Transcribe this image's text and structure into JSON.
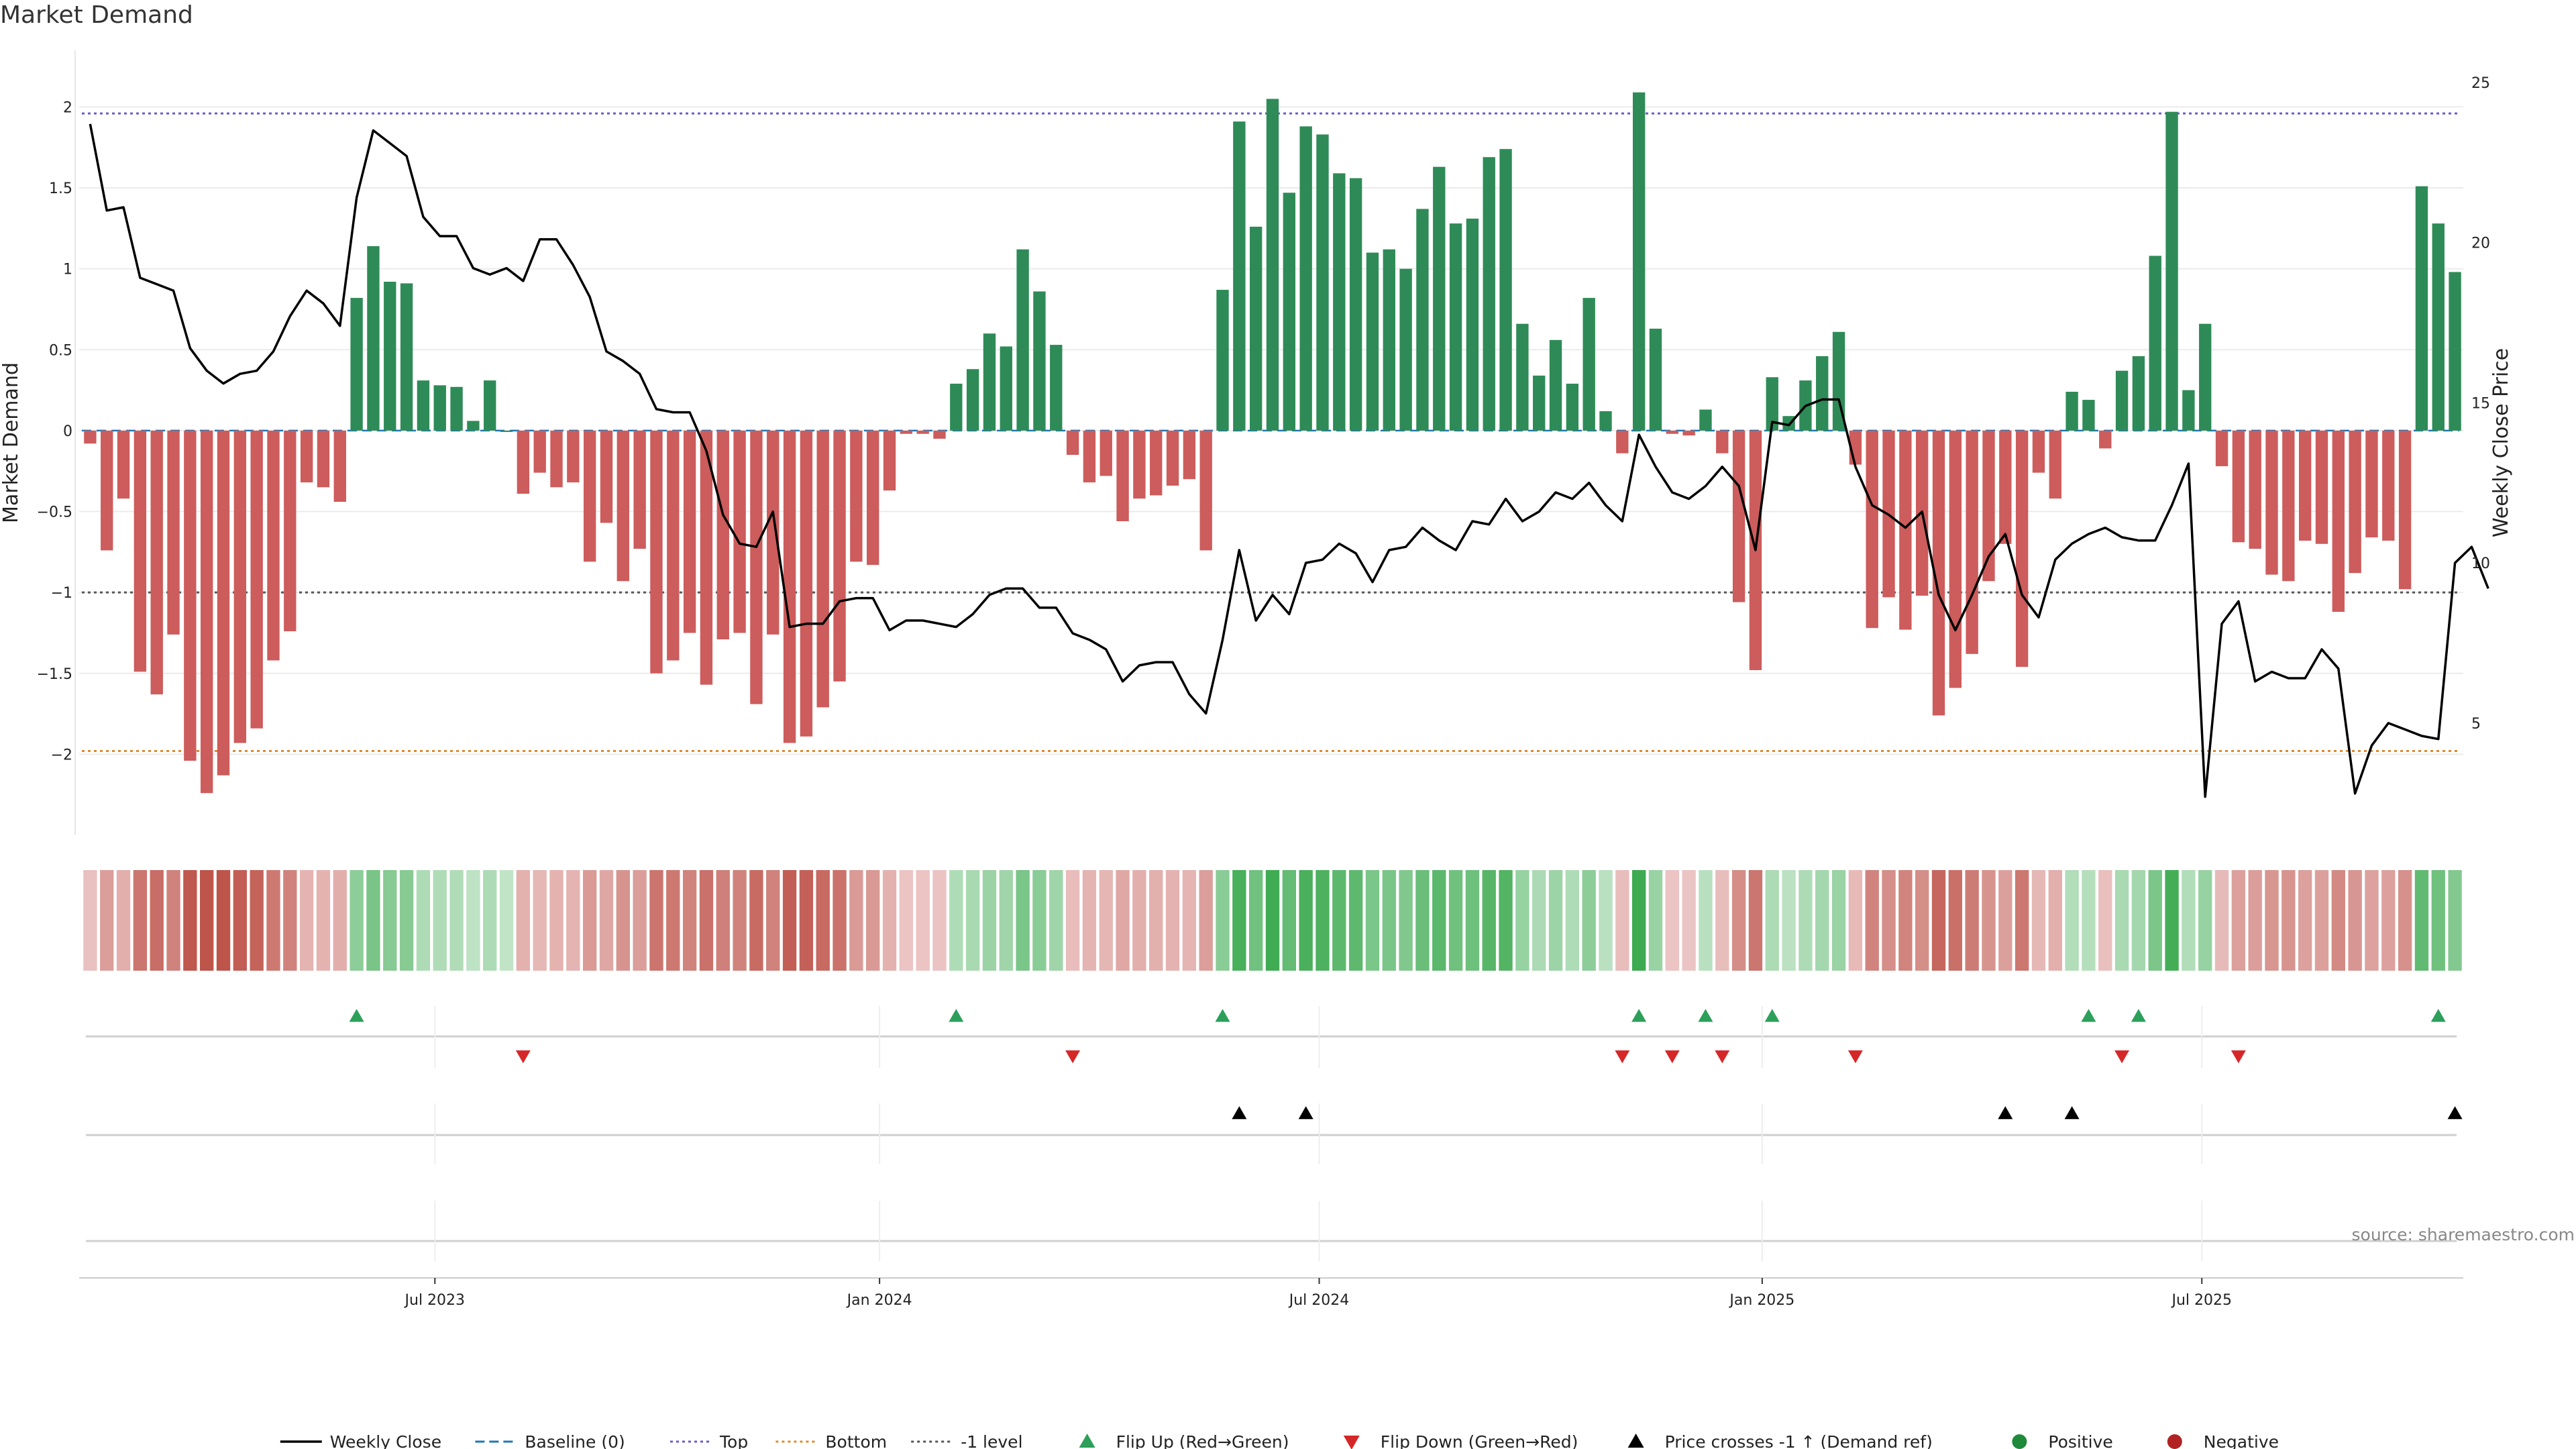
{
  "chart_data": {
    "type": "bar",
    "title": "Market Demand",
    "ylabel": "Market Demand",
    "y2label": "Weekly Close Price",
    "ylim": [
      -2.5,
      2.35
    ],
    "y2lim": [
      1.5,
      26
    ],
    "yticks": [
      "2",
      "1.5",
      "1",
      "0.5",
      "0",
      "−0.5",
      "−1",
      "−1.5",
      "−2"
    ],
    "ytick_values": [
      2,
      1.5,
      1,
      0.5,
      0,
      -0.5,
      -1,
      -1.5,
      -2
    ],
    "y2ticks": [
      "25",
      "20",
      "15",
      "10",
      "5"
    ],
    "y2tick_values": [
      25,
      20,
      15,
      10,
      5
    ],
    "xticks": [
      "Jul 2023",
      "Jan 2024",
      "Jul 2024",
      "Jan 2025",
      "Jul 2025"
    ],
    "xtick_positions": [
      20.7,
      47.4,
      73.8,
      100.4,
      126.8
    ],
    "reference_levels": {
      "top": 1.96,
      "bottom": -1.98,
      "minus_one": -1.0
    },
    "demand": [
      -0.08,
      -0.74,
      -0.42,
      -1.49,
      -1.63,
      -1.26,
      -2.04,
      -2.24,
      -2.13,
      -1.93,
      -1.84,
      -1.42,
      -1.24,
      -0.32,
      -0.35,
      -0.44,
      0.82,
      1.14,
      0.92,
      0.91,
      0.31,
      0.28,
      0.27,
      0.06,
      0.31,
      0,
      -0.39,
      -0.26,
      -0.35,
      -0.32,
      -0.81,
      -0.57,
      -0.93,
      -0.73,
      -1.5,
      -1.42,
      -1.25,
      -1.57,
      -1.29,
      -1.25,
      -1.69,
      -1.26,
      -1.93,
      -1.89,
      -1.71,
      -1.55,
      -0.81,
      -0.83,
      -0.37,
      -0.02,
      -0.02,
      -0.05,
      0.29,
      0.38,
      0.6,
      0.52,
      1.12,
      0.86,
      0.53,
      -0.15,
      -0.32,
      -0.28,
      -0.56,
      -0.42,
      -0.4,
      -0.34,
      -0.3,
      -0.74,
      0.87,
      1.91,
      1.26,
      2.05,
      1.47,
      1.88,
      1.83,
      1.59,
      1.56,
      1.1,
      1.12,
      1.0,
      1.37,
      1.63,
      1.28,
      1.31,
      1.69,
      1.74,
      0.66,
      0.34,
      0.56,
      0.29,
      0.82,
      0.12,
      -0.14,
      2.09,
      0.63,
      -0.02,
      -0.03,
      0.13,
      -0.14,
      -1.06,
      -1.48,
      0.33,
      0.09,
      0.31,
      0.46,
      0.61,
      -0.21,
      -1.22,
      -1.03,
      -1.23,
      -1.02,
      -1.76,
      -1.59,
      -1.38,
      -0.93,
      -0.7,
      -1.46,
      -0.26,
      -0.42,
      0.24,
      0.19,
      -0.11,
      0.37,
      0.46,
      1.08,
      1.97,
      0.25,
      0.66,
      -0.22,
      -0.69,
      -0.73,
      -0.89,
      -0.93,
      -0.68,
      -0.7,
      -1.12,
      -0.88,
      -0.66,
      -0.68,
      -0.98,
      1.51,
      1.28,
      0.98
    ],
    "close": [
      23.7,
      21.0,
      21.1,
      18.9,
      18.7,
      18.5,
      16.7,
      16.0,
      15.6,
      15.9,
      16.0,
      16.6,
      17.7,
      18.5,
      18.1,
      17.4,
      21.4,
      23.5,
      23.1,
      22.7,
      20.8,
      20.2,
      20.2,
      19.2,
      19.0,
      19.2,
      18.8,
      20.1,
      20.1,
      19.3,
      18.3,
      16.6,
      16.3,
      15.9,
      14.8,
      14.7,
      14.7,
      13.5,
      11.5,
      10.6,
      10.5,
      11.6,
      8.0,
      8.1,
      8.1,
      8.8,
      8.9,
      8.9,
      7.9,
      8.2,
      8.2,
      8.1,
      8.0,
      8.4,
      9.0,
      9.2,
      9.2,
      8.6,
      8.6,
      7.8,
      7.6,
      7.3,
      6.3,
      6.8,
      6.9,
      6.9,
      5.9,
      5.3,
      7.6,
      10.4,
      8.2,
      9.0,
      8.4,
      10.0,
      10.1,
      10.6,
      10.3,
      9.4,
      10.4,
      10.5,
      11.1,
      10.7,
      10.4,
      11.3,
      11.2,
      12.0,
      11.3,
      11.6,
      12.2,
      12.0,
      12.5,
      11.8,
      11.3,
      14.0,
      13.0,
      12.2,
      12.0,
      12.4,
      13.0,
      12.4,
      10.4,
      14.4,
      14.3,
      14.9,
      15.1,
      15.1,
      13.0,
      11.8,
      11.5,
      11.1,
      11.6,
      9.0,
      7.9,
      9.0,
      10.2,
      10.9,
      9.0,
      8.3,
      10.1,
      10.6,
      10.9,
      11.1,
      10.8,
      10.7,
      10.7,
      11.8,
      13.1,
      2.7,
      8.1,
      8.8,
      6.3,
      6.6,
      6.4,
      6.4,
      7.3,
      6.7,
      2.8,
      4.3,
      5.0,
      4.8,
      4.6,
      4.5,
      10.0,
      10.5,
      9.2
    ],
    "flip_up_weeks": [
      16,
      52,
      68,
      93,
      97,
      101,
      120,
      123,
      141
    ],
    "flip_down_weeks": [
      26,
      59,
      92,
      95,
      98,
      106,
      122,
      129
    ],
    "price_cross_weeks": [
      69,
      73,
      115,
      119,
      142
    ],
    "source": "source: sharemaestro.com",
    "legend": [
      {
        "label": "Weekly Close",
        "symbol": "line-solid",
        "color": "#000000"
      },
      {
        "label": "Baseline (0)",
        "symbol": "line-dash",
        "color": "#1f77b4"
      },
      {
        "label": "Top",
        "symbol": "line-dot",
        "color": "#6a5acd"
      },
      {
        "label": "Bottom",
        "symbol": "line-dot",
        "color": "#e08a2a"
      },
      {
        "label": "-1 level",
        "symbol": "line-dot",
        "color": "#555555"
      },
      {
        "label": "Flip Up (Red→Green)",
        "symbol": "triangle-up",
        "color": "#2ca05a"
      },
      {
        "label": "Flip Down (Green→Red)",
        "symbol": "triangle-down",
        "color": "#d62728"
      },
      {
        "label": "Price crosses -1 ↑ (Demand ref)",
        "symbol": "triangle-up",
        "color": "#000000"
      },
      {
        "label": "Positive",
        "symbol": "circle",
        "color": "#1e8a3a"
      },
      {
        "label": "Negative",
        "symbol": "circle",
        "color": "#b22222"
      }
    ],
    "colors": {
      "positive": "#2e8b57",
      "negative": "#cd5c5c",
      "line": "#000000",
      "top": "#6a5acd",
      "bottom": "#e08a2a",
      "minus_one": "#555555",
      "baseline": "#1f77b4",
      "grid": "#ebebeb"
    }
  }
}
